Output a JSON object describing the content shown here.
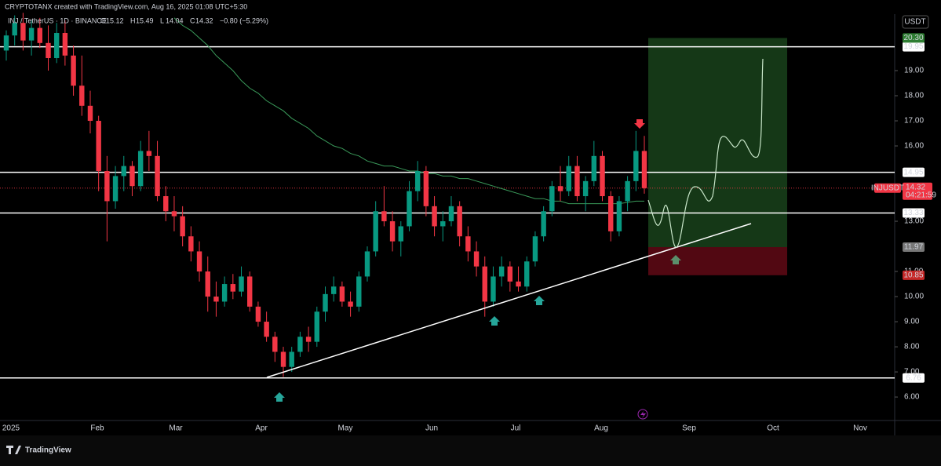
{
  "header": {
    "credit": "CRYPTOTANX created with TradingView.com, Aug 16, 2025 01:08 UTC+5:30",
    "symbol_line": "INJ / TetherUS · 1D · BINANCE",
    "ohlc": [
      {
        "key": "O",
        "value": "15.12"
      },
      {
        "key": "H",
        "value": "15.49"
      },
      {
        "key": "L",
        "value": "14.04"
      },
      {
        "key": "C",
        "value": "14.32"
      }
    ],
    "change": "−0.80 (−5.29%)"
  },
  "footer": {
    "brand": "TradingView"
  },
  "chart_data": {
    "type": "candlestick",
    "currency": "USDT",
    "ylim": [
      4.94,
      21.25
    ],
    "yticks": [
      {
        "value": 6,
        "label": "6.00"
      },
      {
        "value": 7,
        "label": "7.00"
      },
      {
        "value": 8,
        "label": "8.00"
      },
      {
        "value": 9,
        "label": "9.00"
      },
      {
        "value": 10,
        "label": "10.00"
      },
      {
        "value": 11,
        "label": "11.00"
      },
      {
        "value": 13,
        "label": "13.00"
      },
      {
        "value": 16,
        "label": "16.00"
      },
      {
        "value": 17,
        "label": "17.00"
      },
      {
        "value": 18,
        "label": "18.00"
      },
      {
        "value": 19,
        "label": "19.00"
      }
    ],
    "x_labels": [
      "2025",
      "Feb",
      "Mar",
      "Apr",
      "May",
      "Jun",
      "Jul",
      "Aug",
      "Sep",
      "Oct",
      "Nov"
    ],
    "up_color": "#089981",
    "down_color": "#f23645",
    "ma_color": "#3a9a5a",
    "candles": [
      [
        19.8,
        20.6,
        19.4,
        20.4
      ],
      [
        20.4,
        21.2,
        20.0,
        20.9
      ],
      [
        20.9,
        21.3,
        19.8,
        20.2
      ],
      [
        20.2,
        21.0,
        19.6,
        20.7
      ],
      [
        20.7,
        21.1,
        19.9,
        20.1
      ],
      [
        20.1,
        20.8,
        19.0,
        19.5
      ],
      [
        19.5,
        20.9,
        19.3,
        20.5
      ],
      [
        20.5,
        21.0,
        19.2,
        19.6
      ],
      [
        19.6,
        20.0,
        18.0,
        18.4
      ],
      [
        18.4,
        19.6,
        17.2,
        17.6
      ],
      [
        17.6,
        18.2,
        16.5,
        17.0
      ],
      [
        17.0,
        17.2,
        14.2,
        15.0
      ],
      [
        15.0,
        15.6,
        12.2,
        13.8
      ],
      [
        13.8,
        15.2,
        13.5,
        14.8
      ],
      [
        14.8,
        15.6,
        14.2,
        15.2
      ],
      [
        15.2,
        15.4,
        14.0,
        14.4
      ],
      [
        14.4,
        16.2,
        14.2,
        15.8
      ],
      [
        15.8,
        16.6,
        15.0,
        15.6
      ],
      [
        15.6,
        16.2,
        13.8,
        14.0
      ],
      [
        14.0,
        14.4,
        13.0,
        13.4
      ],
      [
        13.4,
        14.0,
        12.6,
        13.2
      ],
      [
        13.2,
        13.6,
        12.0,
        12.4
      ],
      [
        12.4,
        12.8,
        11.4,
        11.8
      ],
      [
        11.8,
        12.2,
        10.6,
        11.0
      ],
      [
        11.0,
        11.6,
        9.4,
        10.0
      ],
      [
        10.0,
        10.6,
        9.2,
        9.8
      ],
      [
        9.8,
        10.8,
        9.6,
        10.5
      ],
      [
        10.5,
        10.9,
        9.9,
        10.2
      ],
      [
        10.2,
        11.2,
        10.0,
        10.8
      ],
      [
        10.8,
        11.0,
        9.4,
        9.6
      ],
      [
        9.6,
        9.8,
        8.8,
        9.0
      ],
      [
        9.0,
        9.4,
        8.2,
        8.4
      ],
      [
        8.4,
        8.6,
        7.4,
        7.8
      ],
      [
        7.8,
        8.0,
        6.8,
        7.2
      ],
      [
        7.2,
        8.0,
        7.0,
        7.8
      ],
      [
        7.8,
        8.6,
        7.6,
        8.4
      ],
      [
        8.4,
        8.8,
        7.8,
        8.2
      ],
      [
        8.2,
        9.6,
        8.0,
        9.4
      ],
      [
        9.4,
        10.4,
        9.0,
        10.1
      ],
      [
        10.1,
        10.8,
        9.8,
        10.4
      ],
      [
        10.4,
        10.6,
        9.6,
        9.8
      ],
      [
        9.8,
        10.2,
        9.2,
        9.6
      ],
      [
        9.6,
        11.0,
        9.4,
        10.8
      ],
      [
        10.8,
        12.0,
        10.6,
        11.8
      ],
      [
        11.8,
        13.8,
        11.6,
        13.4
      ],
      [
        13.4,
        14.4,
        12.8,
        13.0
      ],
      [
        13.0,
        13.4,
        11.8,
        12.2
      ],
      [
        12.2,
        13.0,
        11.6,
        12.8
      ],
      [
        12.8,
        14.6,
        12.6,
        14.2
      ],
      [
        14.2,
        15.4,
        13.8,
        15.0
      ],
      [
        15.0,
        15.2,
        13.2,
        13.6
      ],
      [
        13.6,
        14.0,
        12.4,
        12.8
      ],
      [
        12.8,
        13.4,
        12.2,
        13.0
      ],
      [
        13.0,
        14.0,
        12.8,
        13.6
      ],
      [
        13.6,
        13.8,
        12.0,
        12.4
      ],
      [
        12.4,
        12.8,
        11.4,
        11.8
      ],
      [
        11.8,
        12.2,
        10.8,
        11.2
      ],
      [
        11.2,
        11.6,
        9.2,
        9.8
      ],
      [
        9.8,
        11.2,
        9.6,
        10.8
      ],
      [
        10.8,
        11.6,
        10.4,
        11.2
      ],
      [
        11.2,
        11.4,
        10.2,
        10.6
      ],
      [
        10.6,
        11.2,
        10.2,
        10.4
      ],
      [
        10.4,
        11.6,
        10.2,
        11.4
      ],
      [
        11.4,
        12.6,
        11.2,
        12.4
      ],
      [
        12.4,
        13.6,
        12.2,
        13.4
      ],
      [
        13.4,
        14.6,
        13.2,
        14.4
      ],
      [
        14.4,
        15.2,
        13.8,
        14.2
      ],
      [
        14.2,
        15.6,
        14.0,
        15.2
      ],
      [
        15.2,
        15.6,
        13.8,
        14.0
      ],
      [
        14.0,
        14.8,
        13.4,
        14.6
      ],
      [
        14.6,
        16.2,
        14.4,
        15.6
      ],
      [
        15.6,
        15.8,
        13.8,
        14.0
      ],
      [
        14.0,
        14.2,
        12.2,
        12.6
      ],
      [
        12.6,
        14.0,
        12.4,
        13.8
      ],
      [
        13.8,
        14.8,
        13.4,
        14.6
      ],
      [
        14.6,
        16.6,
        14.2,
        15.8
      ],
      [
        15.8,
        16.4,
        14.1,
        14.32
      ]
    ],
    "ma": [
      null,
      null,
      null,
      null,
      null,
      null,
      null,
      null,
      null,
      null,
      null,
      null,
      null,
      null,
      null,
      null,
      null,
      null,
      null,
      null,
      21.1,
      20.8,
      20.6,
      20.3,
      20.0,
      19.6,
      19.3,
      19.0,
      18.6,
      18.3,
      18.1,
      17.8,
      17.6,
      17.4,
      17.1,
      16.9,
      16.7,
      16.4,
      16.2,
      16.0,
      15.9,
      15.7,
      15.6,
      15.4,
      15.3,
      15.2,
      15.2,
      15.1,
      15.0,
      15.0,
      14.9,
      14.9,
      14.8,
      14.8,
      14.7,
      14.7,
      14.6,
      14.5,
      14.4,
      14.3,
      14.2,
      14.1,
      14.0,
      13.9,
      13.9,
      13.8,
      13.8,
      13.7,
      13.7,
      13.7,
      13.7,
      13.7,
      13.7,
      13.7,
      13.75,
      13.8,
      13.8
    ],
    "levels": [
      19.95,
      14.95,
      13.33,
      6.76
    ],
    "target": {
      "value": 20.3,
      "label": "20.30"
    },
    "entry": 11.97,
    "stop": 10.85,
    "last_price": 14.32,
    "symbol": "INJUSDT",
    "countdown": "04:21:59"
  }
}
